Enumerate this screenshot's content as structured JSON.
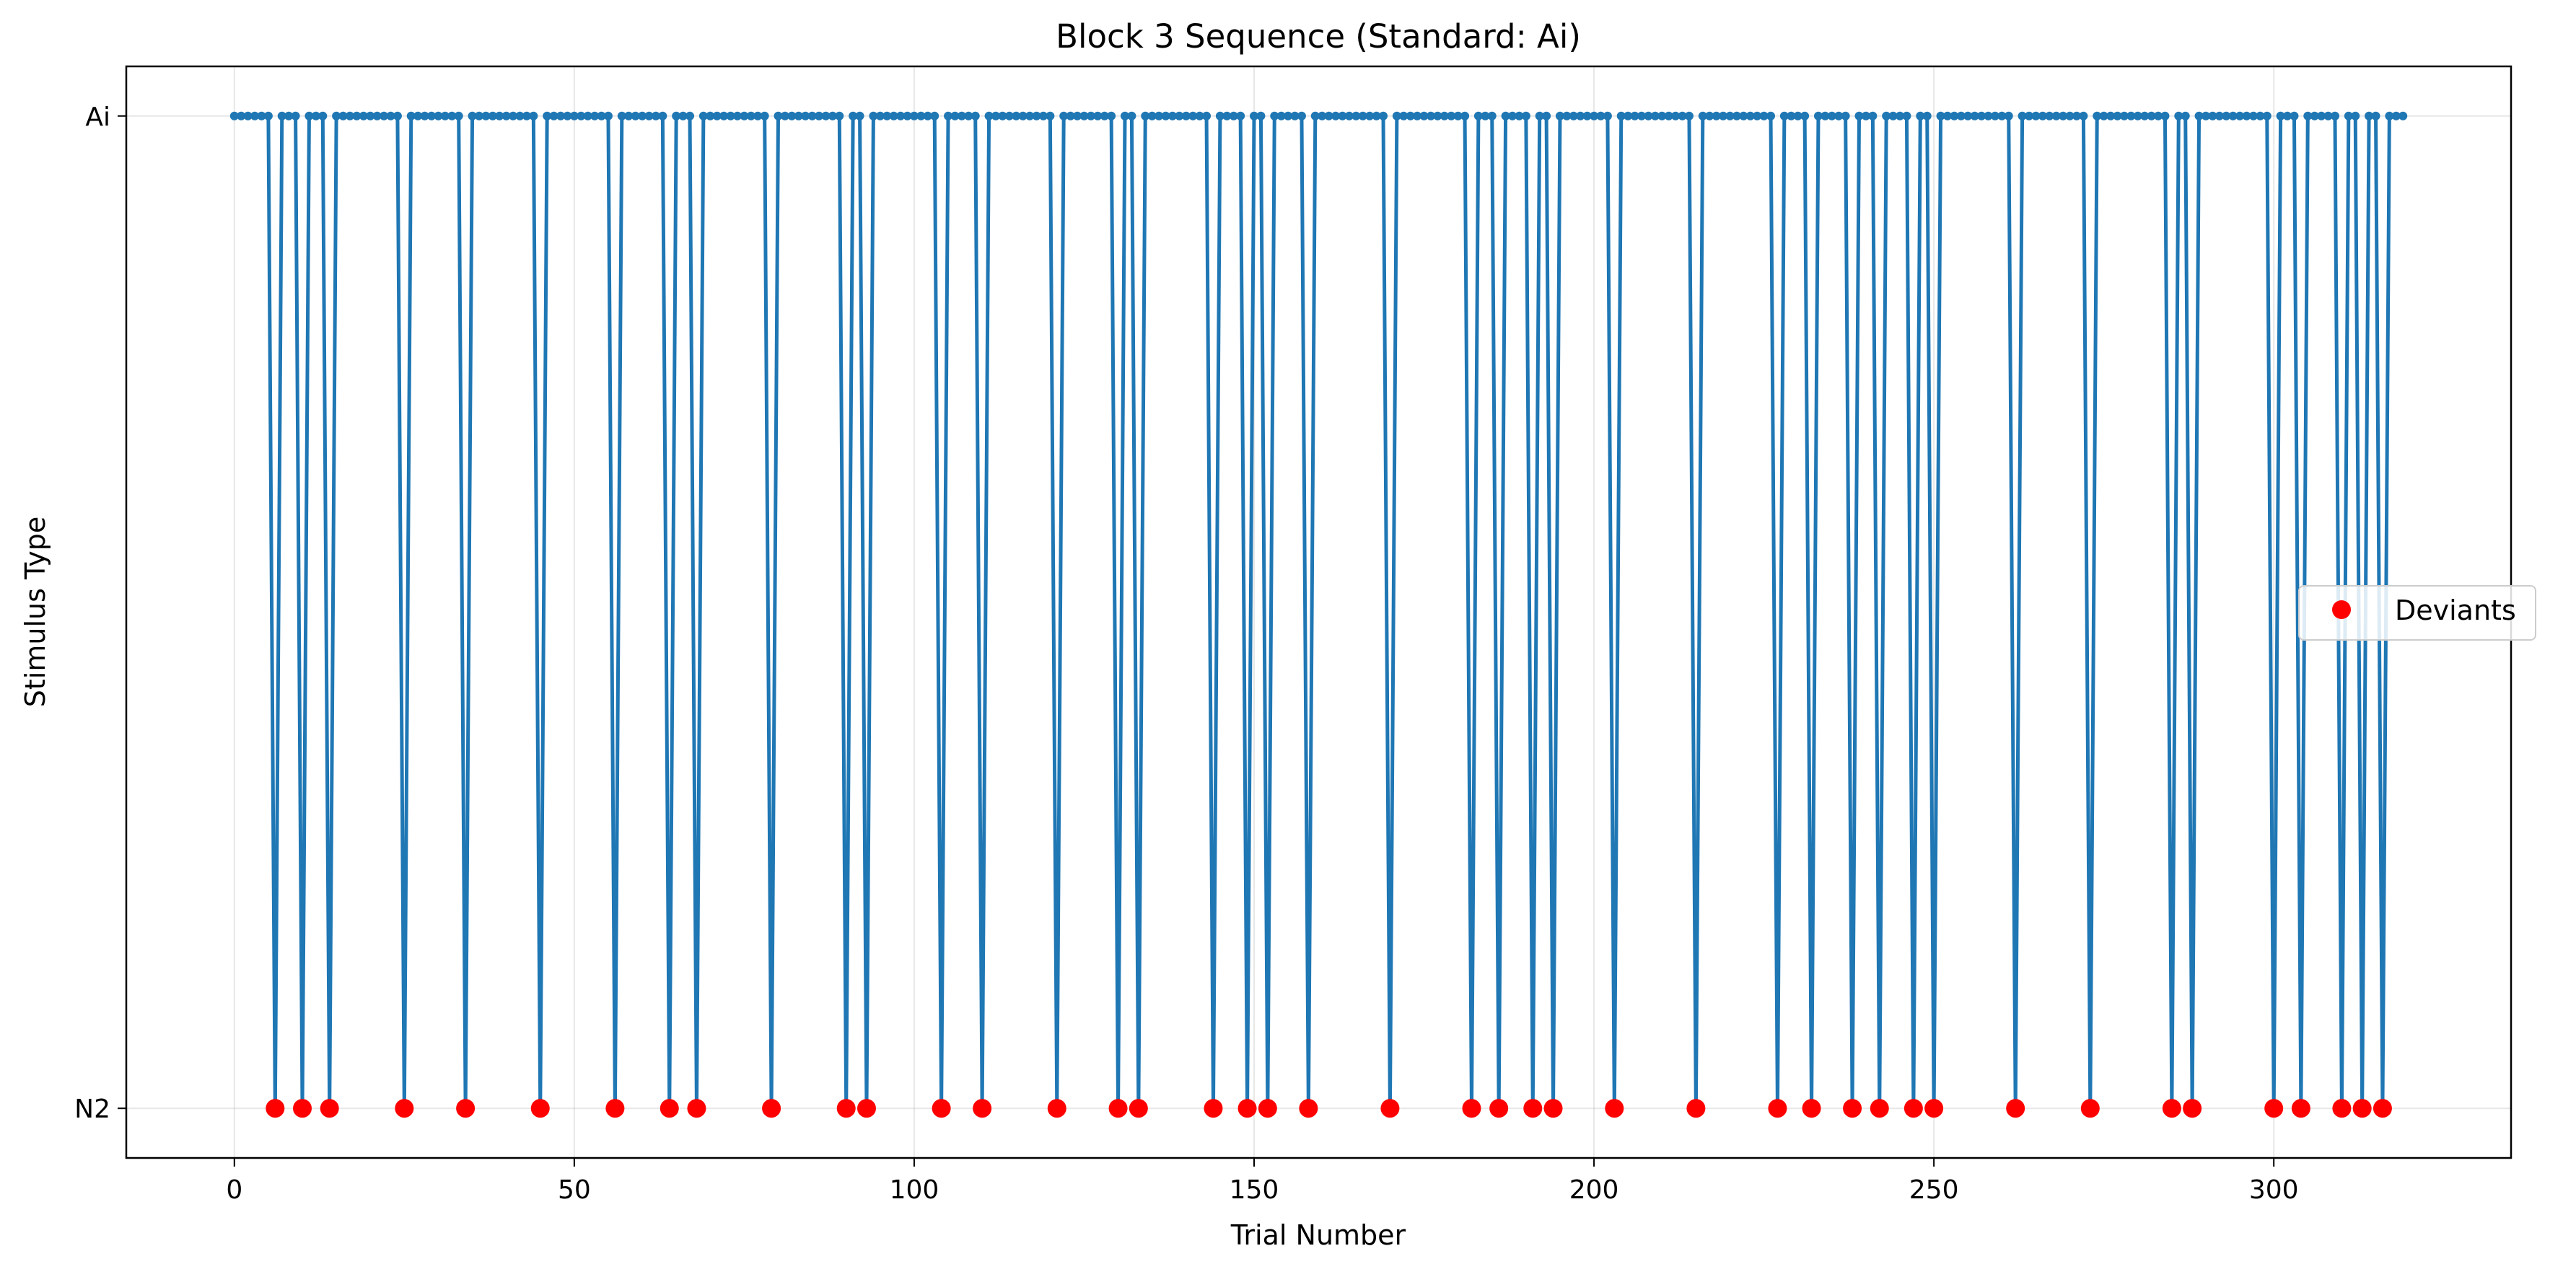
{
  "chart_data": {
    "type": "line",
    "title": "Block 3 Sequence (Standard: Ai)",
    "xlabel": "Trial Number",
    "ylabel": "Stimulus Type",
    "xlim": [
      -15.9,
      334.9
    ],
    "ylim": [
      -0.05,
      1.05
    ],
    "x_ticks": [
      0,
      50,
      100,
      150,
      200,
      250,
      300
    ],
    "y_ticks": [
      {
        "value": 0,
        "label": "N2"
      },
      {
        "value": 1,
        "label": "Ai"
      }
    ],
    "grid": true,
    "n_trials": 320,
    "legend": {
      "placement": "center-right",
      "entries": [
        "Deviants"
      ]
    },
    "series": [
      {
        "style": "line-with-dots",
        "color": "#1f77b4",
        "values_rule": "1 (Ai) for every trial 0-319 except deviant trials, which are 0 (N2)"
      },
      {
        "name": "Deviants",
        "style": "markers",
        "color": "#ff0000",
        "y": 0,
        "x": [
          6,
          10,
          14,
          25,
          34,
          45,
          56,
          64,
          68,
          79,
          90,
          93,
          104,
          110,
          121,
          130,
          133,
          144,
          149,
          152,
          158,
          170,
          182,
          186,
          191,
          194,
          203,
          215,
          227,
          232,
          238,
          242,
          247,
          250,
          262,
          273,
          285,
          288,
          300,
          304,
          310,
          313,
          316
        ]
      }
    ]
  }
}
